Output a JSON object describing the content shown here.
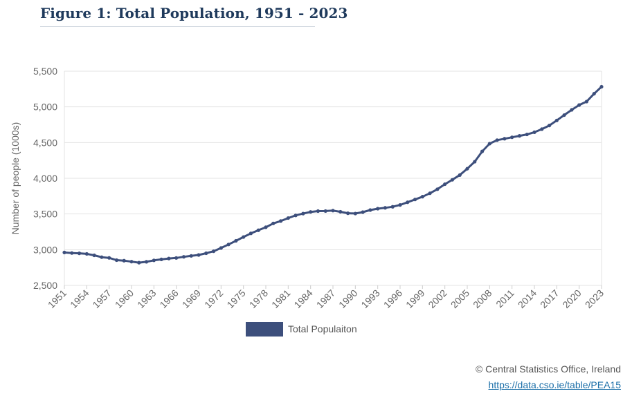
{
  "header": {
    "title": "Figure 1: Total Population, 1951 - 2023"
  },
  "chart_data": {
    "type": "line",
    "ylabel": "Number of people (1000s)",
    "ylim": [
      2500,
      5500
    ],
    "yticks": [
      2500,
      3000,
      3500,
      4000,
      4500,
      5000,
      5500
    ],
    "ytick_labels": [
      "2,500",
      "3,000",
      "3,500",
      "4,000",
      "4,500",
      "5,000",
      "5,500"
    ],
    "xlim": [
      1951,
      2023
    ],
    "xticks": [
      1951,
      1954,
      1957,
      1960,
      1963,
      1966,
      1969,
      1972,
      1975,
      1978,
      1981,
      1984,
      1987,
      1990,
      1993,
      1996,
      1999,
      2002,
      2005,
      2008,
      2011,
      2014,
      2017,
      2020,
      2023
    ],
    "grid": true,
    "legend_position": "bottom",
    "color": "#3d4f7c",
    "series": [
      {
        "name": "Total Populaiton",
        "x": [
          1951,
          1952,
          1953,
          1954,
          1955,
          1956,
          1957,
          1958,
          1959,
          1960,
          1961,
          1962,
          1963,
          1964,
          1965,
          1966,
          1967,
          1968,
          1969,
          1970,
          1971,
          1972,
          1973,
          1974,
          1975,
          1976,
          1977,
          1978,
          1979,
          1980,
          1981,
          1982,
          1983,
          1984,
          1985,
          1986,
          1987,
          1988,
          1989,
          1990,
          1991,
          1992,
          1993,
          1994,
          1995,
          1996,
          1997,
          1998,
          1999,
          2000,
          2001,
          2002,
          2003,
          2004,
          2005,
          2006,
          2007,
          2008,
          2009,
          2010,
          2011,
          2012,
          2013,
          2014,
          2015,
          2016,
          2017,
          2018,
          2019,
          2020,
          2021,
          2022,
          2023
        ],
        "values": [
          2961,
          2953,
          2949,
          2941,
          2921,
          2895,
          2885,
          2853,
          2846,
          2832,
          2818,
          2830,
          2850,
          2864,
          2876,
          2884,
          2900,
          2913,
          2926,
          2950,
          2978,
          3024,
          3073,
          3124,
          3177,
          3228,
          3272,
          3314,
          3368,
          3401,
          3443,
          3480,
          3505,
          3529,
          3540,
          3541,
          3547,
          3531,
          3510,
          3506,
          3526,
          3555,
          3574,
          3586,
          3601,
          3626,
          3664,
          3703,
          3742,
          3790,
          3847,
          3917,
          3979,
          4045,
          4134,
          4232,
          4376,
          4485,
          4534,
          4554,
          4574,
          4594,
          4614,
          4645,
          4688,
          4739,
          4810,
          4885,
          4958,
          5026,
          5074,
          5184,
          5282
        ]
      }
    ]
  },
  "footer": {
    "credit": "© Central Statistics Office, Ireland",
    "link": "https://data.cso.ie/table/PEA15"
  }
}
